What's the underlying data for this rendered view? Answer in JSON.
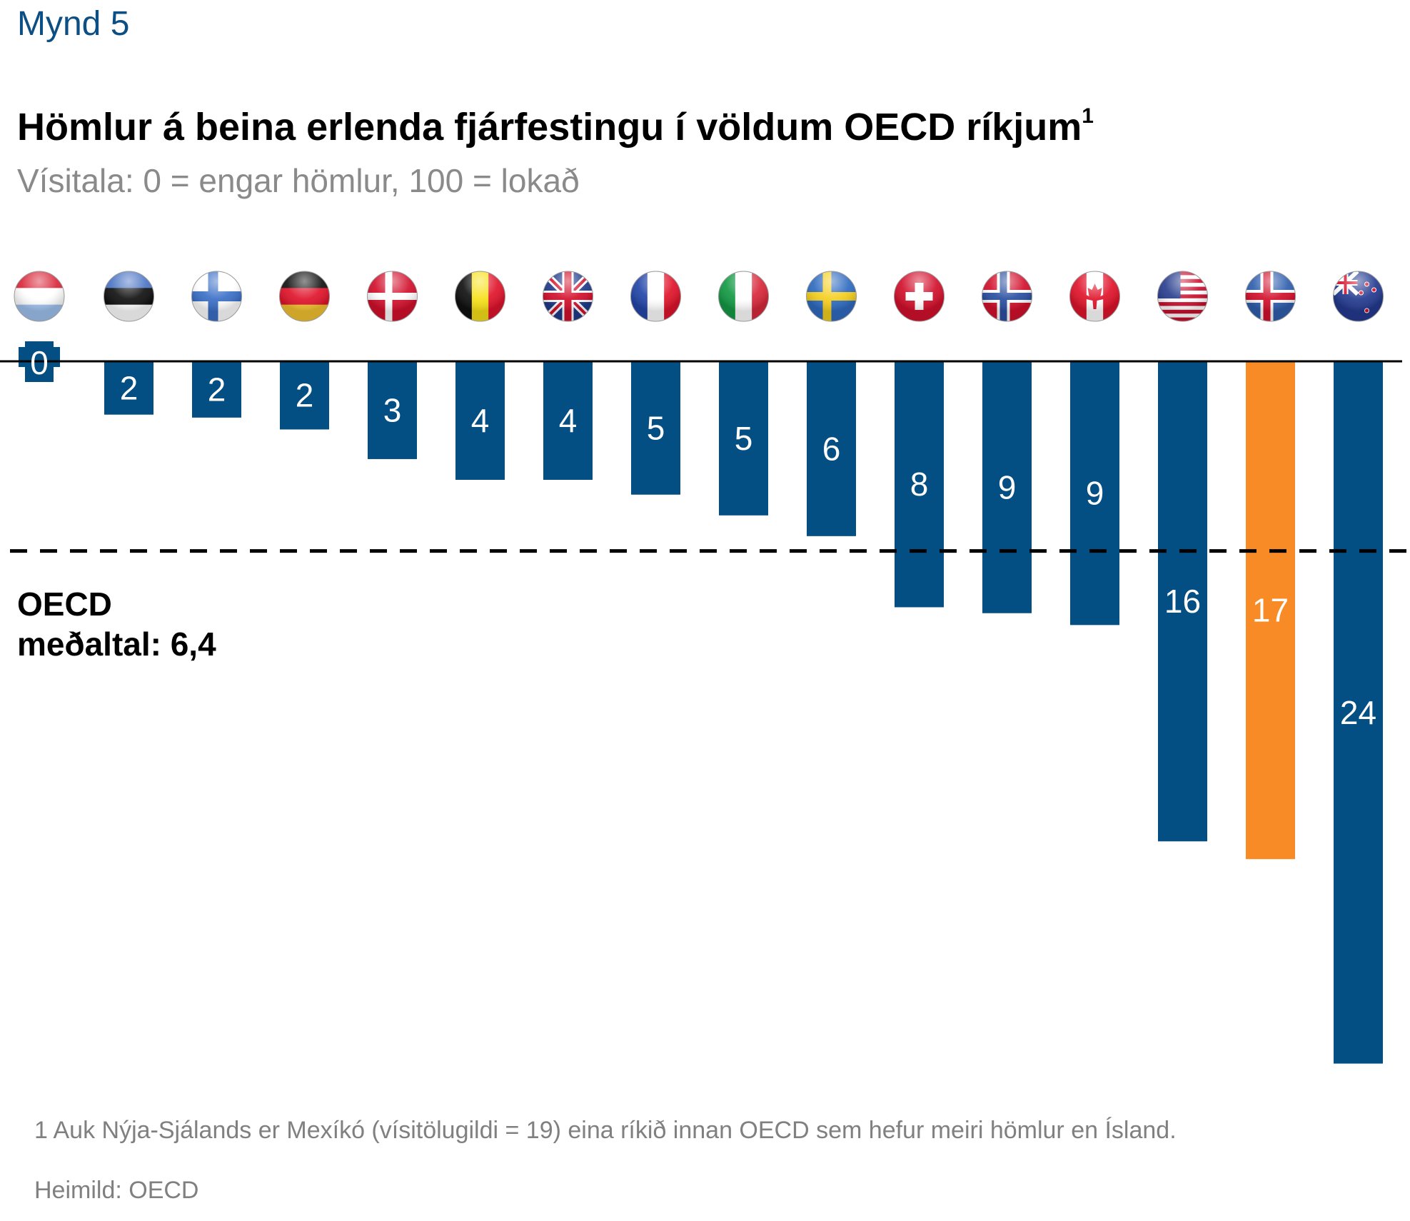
{
  "figure_label": "Mynd 5",
  "title": "Hömlur á beina erlenda fjárfestingu í völdum OECD ríkjum",
  "title_superscript": "1",
  "subtitle": "Vísitala: 0 = engar hömlur, 100 = lokað",
  "average_label_line1": "OECD",
  "average_label_line2": "meðaltal: 6,4",
  "footnote": "1 Auk Nýja-Sjálands er Mexíkó (vísitölugildi = 19) eina ríkið innan OECD sem hefur meiri hömlur en Ísland.",
  "source": "Heimild: OECD",
  "colors": {
    "bar": "#034f83",
    "highlight": "#f98b26",
    "label": "#ffffff",
    "axis": "#000000"
  },
  "chart_data": {
    "type": "bar",
    "orientation": "downward",
    "title": "Hömlur á beina erlenda fjárfestingu í völdum OECD ríkjum",
    "subtitle": "Vísitala: 0 = engar hömlur, 100 = lokað",
    "xlabel": "",
    "ylabel": "",
    "categories": [
      "Luxembourg",
      "Estonia",
      "Finland",
      "Germany",
      "Denmark",
      "Belgium",
      "United Kingdom",
      "France",
      "Italy",
      "Sweden",
      "Switzerland",
      "Norway",
      "Canada",
      "United States",
      "Iceland",
      "New Zealand"
    ],
    "category_icons": [
      "flag-luxembourg-icon",
      "flag-estonia-icon",
      "flag-finland-icon",
      "flag-germany-icon",
      "flag-denmark-icon",
      "flag-belgium-icon",
      "flag-uk-icon",
      "flag-france-icon",
      "flag-italy-icon",
      "flag-sweden-icon",
      "flag-switzerland-icon",
      "flag-norway-icon",
      "flag-canada-icon",
      "flag-usa-icon",
      "flag-iceland-icon",
      "flag-new-zealand-icon"
    ],
    "values": [
      0,
      1.8,
      1.9,
      2.3,
      3.3,
      4.0,
      4.0,
      4.5,
      5.2,
      5.9,
      8.3,
      8.5,
      8.9,
      16.2,
      16.8,
      23.7
    ],
    "data_labels": [
      "0",
      "2",
      "2",
      "2",
      "3",
      "4",
      "4",
      "5",
      "5",
      "6",
      "8",
      "9",
      "9",
      "16",
      "17",
      "24"
    ],
    "highlight_category": "Iceland",
    "reference_line": {
      "value": 6.4,
      "label": "OECD meðaltal: 6,4",
      "style": "dashed"
    },
    "ylim": [
      0,
      25
    ],
    "grid": false,
    "legend": "none"
  }
}
